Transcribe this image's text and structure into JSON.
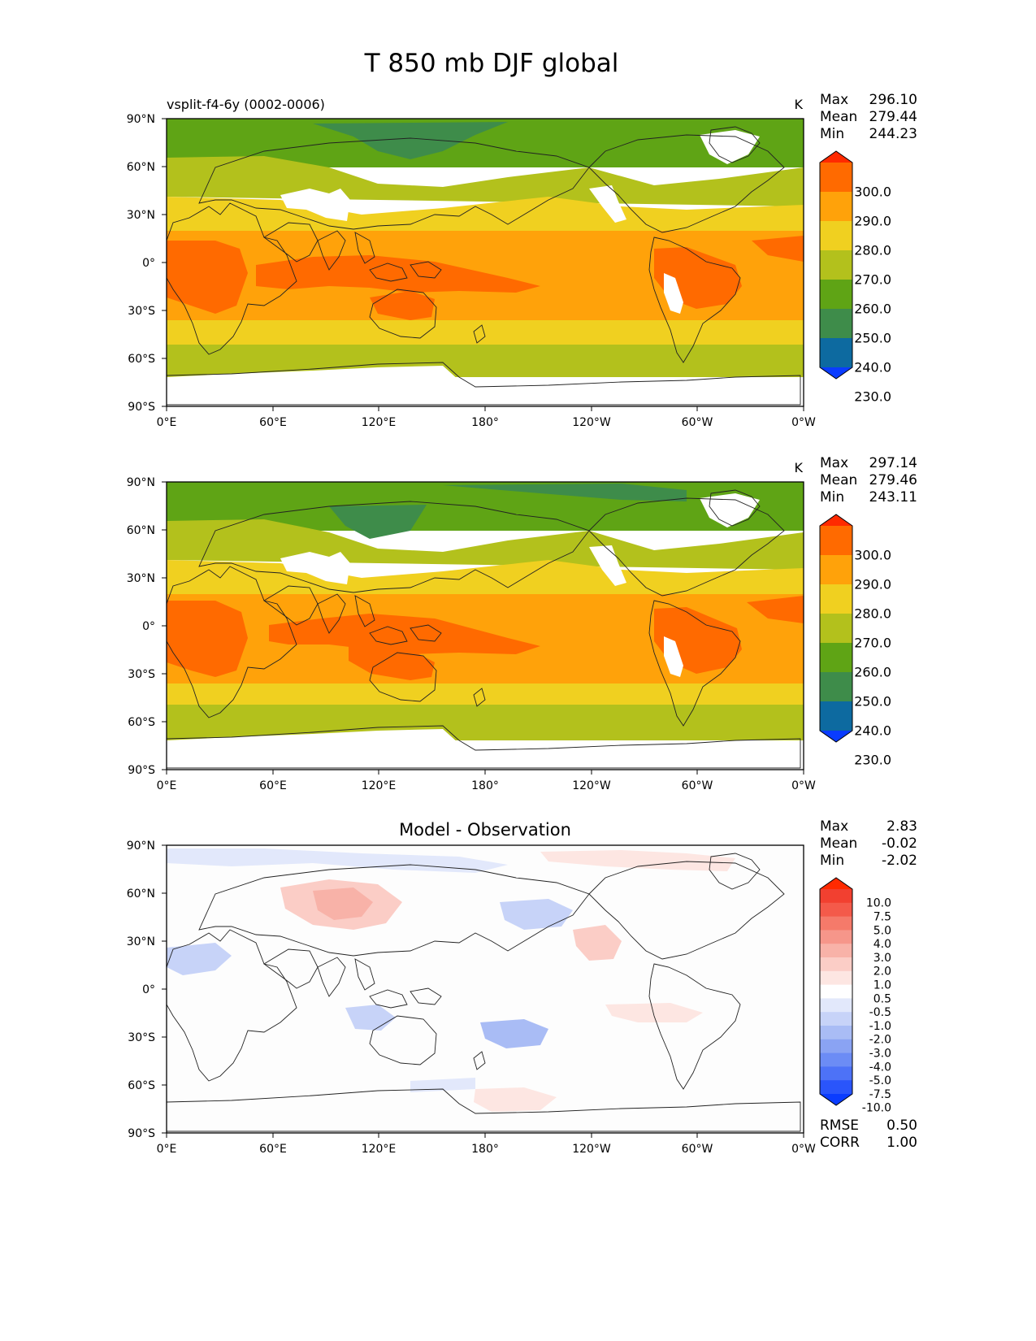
{
  "figure": {
    "title": "T 850 mb DJF global"
  },
  "axes": {
    "lat_ticks": [
      "90°N",
      "60°N",
      "30°N",
      "0°",
      "30°S",
      "60°S",
      "90°S"
    ],
    "lon_ticks": [
      "0°E",
      "60°E",
      "120°E",
      "180°",
      "120°W",
      "60°W",
      "0°W"
    ]
  },
  "panels": [
    {
      "id": "model",
      "subtitle_left": "vsplit-f4-6y (0002-0006)",
      "subtitle_center": "",
      "units": "K",
      "stats": {
        "labels": [
          "Max",
          "Mean",
          "Min"
        ],
        "values": [
          "296.10",
          "279.44",
          "244.23"
        ]
      },
      "colorbar": {
        "labels": [
          "300.0",
          "290.0",
          "280.0",
          "270.0",
          "260.0",
          "250.0",
          "240.0",
          "230.0"
        ],
        "colors": [
          "#ff2a00",
          "#ff6a00",
          "#ffa20a",
          "#f0d020",
          "#b3c11c",
          "#5fa415",
          "#3e8c4a",
          "#0d6aa0",
          "#0a3cff"
        ]
      }
    },
    {
      "id": "observation",
      "subtitle_left": "",
      "subtitle_center": "",
      "units": "K",
      "stats": {
        "labels": [
          "Max",
          "Mean",
          "Min"
        ],
        "values": [
          "297.14",
          "279.46",
          "243.11"
        ]
      },
      "colorbar": {
        "labels": [
          "300.0",
          "290.0",
          "280.0",
          "270.0",
          "260.0",
          "250.0",
          "240.0",
          "230.0"
        ],
        "colors": [
          "#ff2a00",
          "#ff6a00",
          "#ffa20a",
          "#f0d020",
          "#b3c11c",
          "#5fa415",
          "#3e8c4a",
          "#0d6aa0",
          "#0a3cff"
        ]
      }
    },
    {
      "id": "difference",
      "subtitle_left": "",
      "subtitle_center": "Model - Observation",
      "units": "",
      "stats": {
        "labels": [
          "Max",
          "Mean",
          "Min"
        ],
        "values": [
          "2.83",
          "-0.02",
          "-2.02"
        ]
      },
      "colorbar": {
        "labels": [
          "10.0",
          "7.5",
          "5.0",
          "4.0",
          "3.0",
          "2.0",
          "1.0",
          "0.5",
          "-0.5",
          "-1.0",
          "-2.0",
          "-3.0",
          "-4.0",
          "-5.0",
          "-7.5",
          "-10.0"
        ],
        "colors": [
          "#ff2a00",
          "#f24030",
          "#f45a4a",
          "#f57a6a",
          "#f6968a",
          "#f8b2a8",
          "#fbcdc6",
          "#fde6e2",
          "#ffffff",
          "#e2e8fb",
          "#c7d3f8",
          "#a9bcf5",
          "#8aa3f3",
          "#6c8cf5",
          "#4d72f7",
          "#2a55fb",
          "#0a3cff"
        ]
      },
      "metrics": {
        "labels": [
          "RMSE",
          "CORR"
        ],
        "values": [
          "0.50",
          "1.00"
        ]
      }
    }
  ]
}
